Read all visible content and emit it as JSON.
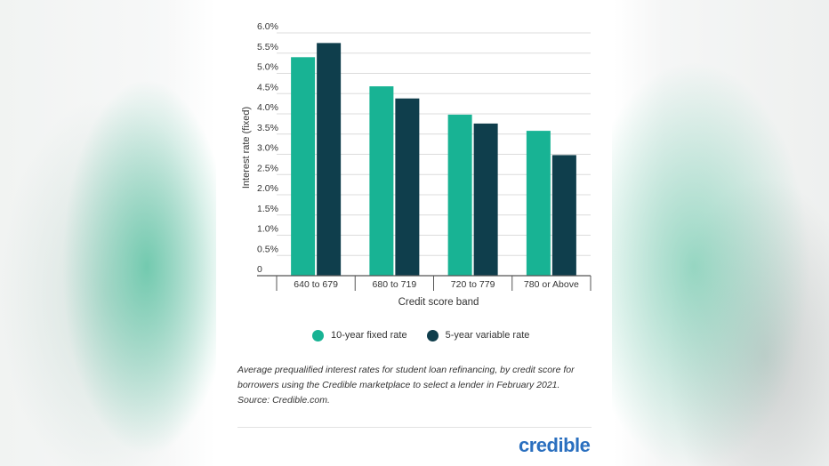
{
  "chart_data": {
    "type": "bar",
    "categories": [
      "640 to 679",
      "680 to 719",
      "720 to 779",
      "780 or Above"
    ],
    "series": [
      {
        "name": "10-year fixed rate",
        "values": [
          5.4,
          4.68,
          3.98,
          3.58
        ]
      },
      {
        "name": "5-year variable rate",
        "values": [
          5.75,
          4.38,
          3.76,
          2.98
        ]
      }
    ],
    "ylabel": "Interest rate (fixed)",
    "xlabel": "Credit score band",
    "ylim": [
      0,
      6.0
    ],
    "yticks": [
      {
        "value": 6.0,
        "label": "6.0%"
      },
      {
        "value": 5.5,
        "label": "5.5%"
      },
      {
        "value": 5.0,
        "label": "5.0%"
      },
      {
        "value": 4.5,
        "label": "4.5%"
      },
      {
        "value": 4.0,
        "label": "4.0%"
      },
      {
        "value": 3.5,
        "label": "3.5%"
      },
      {
        "value": 3.0,
        "label": "3.0%"
      },
      {
        "value": 2.5,
        "label": "2.5%"
      },
      {
        "value": 2.0,
        "label": "2.0%"
      },
      {
        "value": 1.5,
        "label": "1.5%"
      },
      {
        "value": 1.0,
        "label": "1.0%"
      },
      {
        "value": 0.5,
        "label": "0.5%"
      },
      {
        "value": 0,
        "label": "0"
      }
    ],
    "grid": true,
    "legend_position": "bottom"
  },
  "colors": {
    "fixed": "#18b394",
    "variable": "#0f3e4c",
    "grid": "#dcdcdc",
    "axis_text": "#333333",
    "logo": "#2a6fbf"
  },
  "legend": {
    "fixed_label": "10-year fixed rate",
    "variable_label": "5-year variable rate"
  },
  "caption": "Average prequalified interest rates for student loan refinancing, by credit score for borrowers using the Credible marketplace to select a lender in February 2021. Source: Credible.com.",
  "logo_text": "credible"
}
